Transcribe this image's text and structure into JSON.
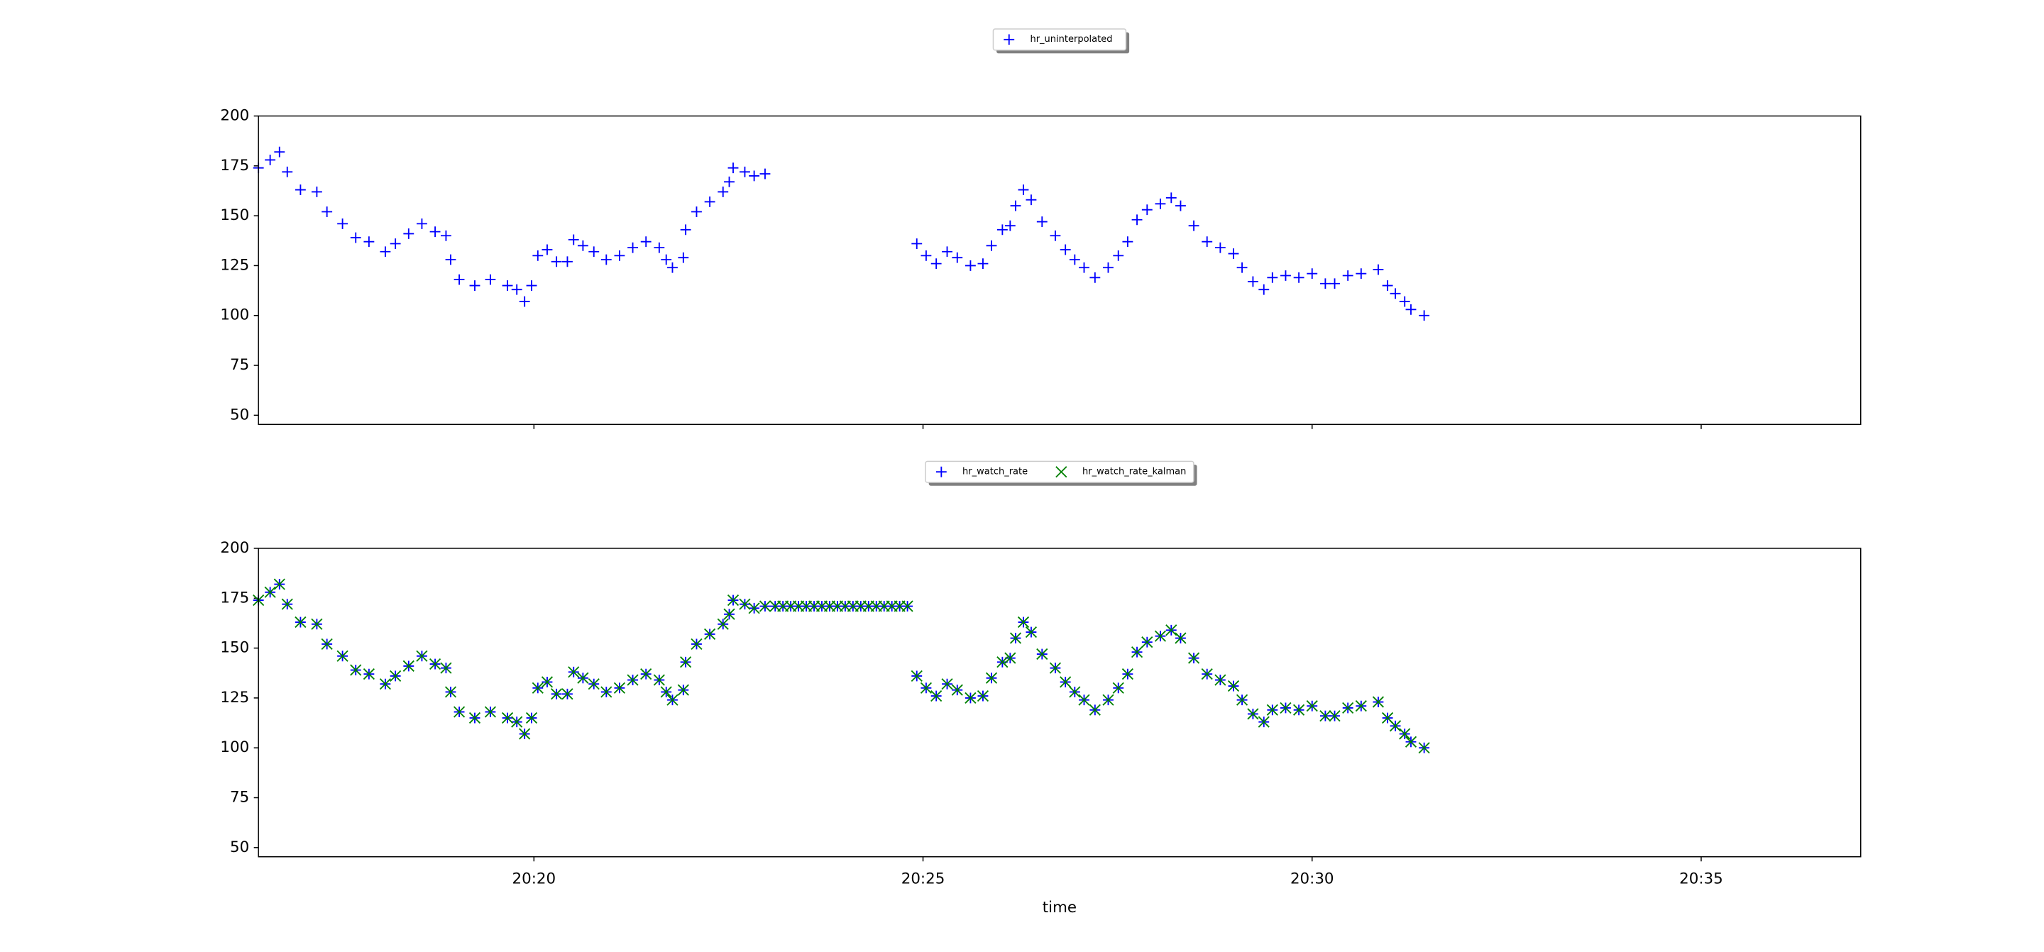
{
  "chart_data": [
    {
      "type": "scatter",
      "legend": "upper center outside",
      "show_xtick_labels": false,
      "x": [
        1216.46,
        1216.61,
        1216.73,
        1216.83,
        1217.0,
        1217.21,
        1217.34,
        1217.54,
        1217.71,
        1217.88,
        1218.09,
        1218.22,
        1218.39,
        1218.56,
        1218.73,
        1218.87,
        1218.93,
        1219.04,
        1219.24,
        1219.44,
        1219.66,
        1219.78,
        1219.88,
        1219.97,
        1220.05,
        1220.17,
        1220.29,
        1220.43,
        1220.51,
        1220.63,
        1220.77,
        1220.93,
        1221.1,
        1221.27,
        1221.44,
        1221.61,
        1221.7,
        1221.78,
        1221.92,
        1221.95,
        1222.09,
        1222.26,
        1222.43,
        1222.51,
        1222.56,
        1222.71,
        1222.83,
        1222.97,
        1224.92,
        1225.04,
        1225.17,
        1225.31,
        1225.44,
        1225.61,
        1225.77,
        1225.88,
        1226.02,
        1226.12,
        1226.19,
        1226.29,
        1226.39,
        1226.53,
        1226.7,
        1226.83,
        1226.95,
        1227.07,
        1227.21,
        1227.38,
        1227.51,
        1227.63,
        1227.75,
        1227.88,
        1228.05,
        1228.19,
        1228.31,
        1228.48,
        1228.65,
        1228.82,
        1228.99,
        1229.1,
        1229.24,
        1229.38,
        1229.49,
        1229.66,
        1229.83,
        1230.0,
        1230.17,
        1230.29,
        1230.46,
        1230.63,
        1230.85,
        1230.97,
        1231.07,
        1231.19,
        1231.27,
        1231.44
      ],
      "series": [
        {
          "name": "hr_uninterpolated",
          "color": "#0000ff",
          "marker": "+",
          "values": [
            174,
            178,
            182,
            172,
            163,
            162,
            152,
            146,
            139,
            137,
            132,
            136,
            141,
            146,
            142,
            140,
            128,
            118,
            115,
            118,
            115,
            113,
            107,
            115,
            130,
            133,
            127,
            127,
            138,
            135,
            132,
            128,
            130,
            134,
            137,
            134,
            128,
            124,
            129,
            143,
            152,
            157,
            162,
            167,
            174,
            172,
            170,
            171,
            136,
            130,
            126,
            132,
            129,
            125,
            126,
            135,
            143,
            145,
            155,
            163,
            158,
            147,
            140,
            133,
            128,
            124,
            119,
            124,
            130,
            137,
            148,
            153,
            156,
            159,
            155,
            145,
            137,
            134,
            131,
            124,
            117,
            113,
            119,
            120,
            119,
            121,
            116,
            116,
            120,
            121,
            123,
            115,
            111,
            107,
            103,
            100
          ]
        }
      ],
      "xlim": [
        1216.46,
        1237.05
      ],
      "xticks": [
        1220,
        1225,
        1230,
        1235
      ],
      "ylim": [
        45.4,
        200
      ],
      "yticks": [
        50,
        75,
        100,
        125,
        150,
        175,
        200
      ]
    },
    {
      "type": "scatter",
      "legend": "upper center outside",
      "show_xtick_labels": true,
      "xlabel": "time",
      "x": [
        1216.46,
        1216.61,
        1216.73,
        1216.83,
        1217.0,
        1217.21,
        1217.34,
        1217.54,
        1217.71,
        1217.88,
        1218.09,
        1218.22,
        1218.39,
        1218.56,
        1218.73,
        1218.87,
        1218.93,
        1219.04,
        1219.24,
        1219.44,
        1219.66,
        1219.78,
        1219.88,
        1219.97,
        1220.05,
        1220.17,
        1220.29,
        1220.43,
        1220.51,
        1220.63,
        1220.77,
        1220.93,
        1221.1,
        1221.27,
        1221.44,
        1221.61,
        1221.7,
        1221.78,
        1221.92,
        1221.95,
        1222.09,
        1222.26,
        1222.43,
        1222.51,
        1222.56,
        1222.71,
        1222.83,
        1222.97,
        1223.1,
        1223.2,
        1223.3,
        1223.4,
        1223.5,
        1223.6,
        1223.7,
        1223.8,
        1223.9,
        1224.0,
        1224.1,
        1224.2,
        1224.3,
        1224.4,
        1224.5,
        1224.6,
        1224.7,
        1224.8,
        1224.92,
        1225.04,
        1225.17,
        1225.31,
        1225.44,
        1225.61,
        1225.77,
        1225.88,
        1226.02,
        1226.12,
        1226.19,
        1226.29,
        1226.39,
        1226.53,
        1226.7,
        1226.83,
        1226.95,
        1227.07,
        1227.21,
        1227.38,
        1227.51,
        1227.63,
        1227.75,
        1227.88,
        1228.05,
        1228.19,
        1228.31,
        1228.48,
        1228.65,
        1228.82,
        1228.99,
        1229.1,
        1229.24,
        1229.38,
        1229.49,
        1229.66,
        1229.83,
        1230.0,
        1230.17,
        1230.29,
        1230.46,
        1230.63,
        1230.85,
        1230.97,
        1231.07,
        1231.19,
        1231.27,
        1231.44
      ],
      "series": [
        {
          "name": "hr_watch_rate",
          "color": "#0000ff",
          "marker": "+",
          "values": [
            174,
            178,
            182,
            172,
            163,
            162,
            152,
            146,
            139,
            137,
            132,
            136,
            141,
            146,
            142,
            140,
            128,
            118,
            115,
            118,
            115,
            113,
            107,
            115,
            130,
            133,
            127,
            127,
            138,
            135,
            132,
            128,
            130,
            134,
            137,
            134,
            128,
            124,
            129,
            143,
            152,
            157,
            162,
            167,
            174,
            172,
            170,
            171,
            171,
            171,
            171,
            171,
            171,
            171,
            171,
            171,
            171,
            171,
            171,
            171,
            171,
            171,
            171,
            171,
            171,
            171,
            136,
            130,
            126,
            132,
            129,
            125,
            126,
            135,
            143,
            145,
            155,
            163,
            158,
            147,
            140,
            133,
            128,
            124,
            119,
            124,
            130,
            137,
            148,
            153,
            156,
            159,
            155,
            145,
            137,
            134,
            131,
            124,
            117,
            113,
            119,
            120,
            119,
            121,
            116,
            116,
            120,
            121,
            123,
            115,
            111,
            107,
            103,
            100
          ]
        },
        {
          "name": "hr_watch_rate_kalman",
          "color": "#008000",
          "marker": "x",
          "values": [
            174,
            178,
            182,
            172,
            163,
            162,
            152,
            146,
            139,
            137,
            132,
            136,
            141,
            146,
            142,
            140,
            128,
            118,
            115,
            118,
            115,
            113,
            107,
            115,
            130,
            133,
            127,
            127,
            138,
            135,
            132,
            128,
            130,
            134,
            137,
            134,
            128,
            124,
            129,
            143,
            152,
            157,
            162,
            167,
            174,
            172,
            170,
            171,
            171,
            171,
            171,
            171,
            171,
            171,
            171,
            171,
            171,
            171,
            171,
            171,
            171,
            171,
            171,
            171,
            171,
            171,
            136,
            130,
            126,
            132,
            129,
            125,
            126,
            135,
            143,
            145,
            155,
            163,
            158,
            147,
            140,
            133,
            128,
            124,
            119,
            124,
            130,
            137,
            148,
            153,
            156,
            159,
            155,
            145,
            137,
            134,
            131,
            124,
            117,
            113,
            119,
            120,
            119,
            121,
            116,
            116,
            120,
            121,
            123,
            115,
            111,
            107,
            103,
            100
          ]
        }
      ],
      "xlim": [
        1216.46,
        1237.05
      ],
      "xticks": [
        {
          "value": 1220,
          "label": "20:20"
        },
        {
          "value": 1225,
          "label": "20:25"
        },
        {
          "value": 1230,
          "label": "20:30"
        },
        {
          "value": 1235,
          "label": "20:35"
        }
      ],
      "ylim": [
        45.4,
        200
      ],
      "yticks": [
        50,
        75,
        100,
        125,
        150,
        175,
        200
      ]
    }
  ]
}
